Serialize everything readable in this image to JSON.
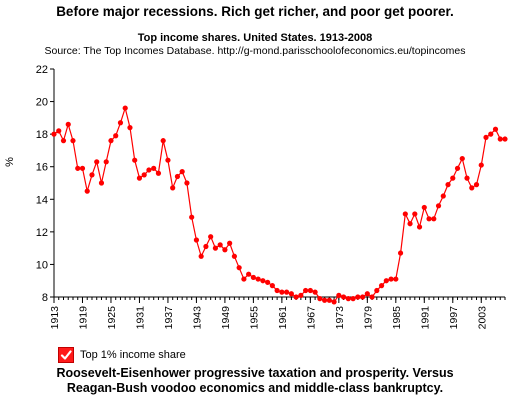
{
  "headline": "Before major recessions. Rich get richer, and poor get poorer.",
  "caption_line1": "Roosevelt-Eisenhower progressive taxation and prosperity. Versus",
  "caption_line2": "Reagan-Bush voodoo economics and middle-class bankruptcy.",
  "legend": {
    "label": "Top 1% income share",
    "checked": true,
    "color": "#ff0000"
  },
  "chart_data": {
    "type": "line",
    "title": "Top income shares. United States. 1913-2008",
    "subtitle": "Source: The Top Incomes Database. http://g-mond.parisschoolofeconomics.eu/topincomes",
    "xlabel": "",
    "ylabel": "%",
    "xlim": [
      1913,
      2008
    ],
    "ylim": [
      8,
      22
    ],
    "grid": false,
    "legend_position": "bottom-left",
    "x_ticks": [
      "1913",
      "1919",
      "1925",
      "1931",
      "1937",
      "1943",
      "1949",
      "1955",
      "1961",
      "1967",
      "1973",
      "1979",
      "1985",
      "1991",
      "1997",
      "2003"
    ],
    "y_ticks": [
      "8",
      "10",
      "12",
      "14",
      "16",
      "18",
      "20",
      "22"
    ],
    "series": [
      {
        "name": "Top 1% income share",
        "color": "#ff0000",
        "x": [
          1913,
          1914,
          1915,
          1916,
          1917,
          1918,
          1919,
          1920,
          1921,
          1922,
          1923,
          1924,
          1925,
          1926,
          1927,
          1928,
          1929,
          1930,
          1931,
          1932,
          1933,
          1934,
          1935,
          1936,
          1937,
          1938,
          1939,
          1940,
          1941,
          1942,
          1943,
          1944,
          1945,
          1946,
          1947,
          1948,
          1949,
          1950,
          1951,
          1952,
          1953,
          1954,
          1955,
          1956,
          1957,
          1958,
          1959,
          1960,
          1961,
          1962,
          1963,
          1964,
          1965,
          1966,
          1967,
          1968,
          1969,
          1970,
          1971,
          1972,
          1973,
          1974,
          1975,
          1976,
          1977,
          1978,
          1979,
          1980,
          1981,
          1982,
          1983,
          1984,
          1985,
          1986,
          1987,
          1988,
          1989,
          1990,
          1991,
          1992,
          1993,
          1994,
          1995,
          1996,
          1997,
          1998,
          1999,
          2000,
          2001,
          2002,
          2003,
          2004,
          2005,
          2006,
          2007,
          2008
        ],
        "values": [
          18.0,
          18.2,
          17.6,
          18.6,
          17.6,
          15.9,
          15.9,
          14.5,
          15.5,
          16.3,
          15.0,
          16.3,
          17.6,
          17.9,
          18.7,
          19.6,
          18.4,
          16.4,
          15.3,
          15.5,
          15.8,
          15.9,
          15.6,
          17.6,
          16.4,
          14.7,
          15.4,
          15.7,
          15.0,
          12.9,
          11.5,
          10.5,
          11.1,
          11.7,
          11.0,
          11.2,
          10.9,
          11.3,
          10.5,
          9.8,
          9.1,
          9.4,
          9.2,
          9.1,
          9.0,
          8.9,
          8.7,
          8.4,
          8.3,
          8.3,
          8.2,
          8.0,
          8.1,
          8.4,
          8.4,
          8.3,
          7.9,
          7.8,
          7.8,
          7.7,
          8.1,
          8.0,
          7.9,
          7.9,
          8.0,
          8.0,
          8.2,
          8.0,
          8.4,
          8.7,
          9.0,
          9.1,
          9.1,
          10.7,
          13.1,
          12.5,
          13.1,
          12.3,
          13.5,
          12.8,
          12.8,
          13.6,
          14.2,
          14.9,
          15.3,
          15.9,
          16.5,
          15.3,
          14.7,
          14.9,
          16.1,
          17.8,
          18.0,
          18.3,
          17.7,
          17.7
        ]
      }
    ]
  }
}
